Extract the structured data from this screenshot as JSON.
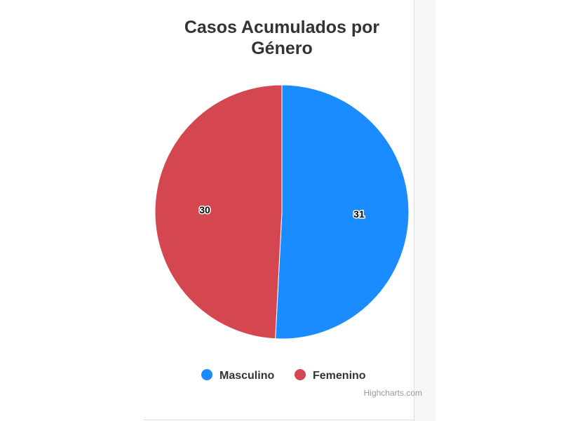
{
  "chart_data": {
    "type": "pie",
    "title": "Casos Acumulados por Género",
    "categories": [
      "Masculino",
      "Femenino"
    ],
    "values": [
      31,
      30
    ],
    "colors": [
      "#1a8cff",
      "#d44750"
    ],
    "credits": "Highcharts.com"
  }
}
